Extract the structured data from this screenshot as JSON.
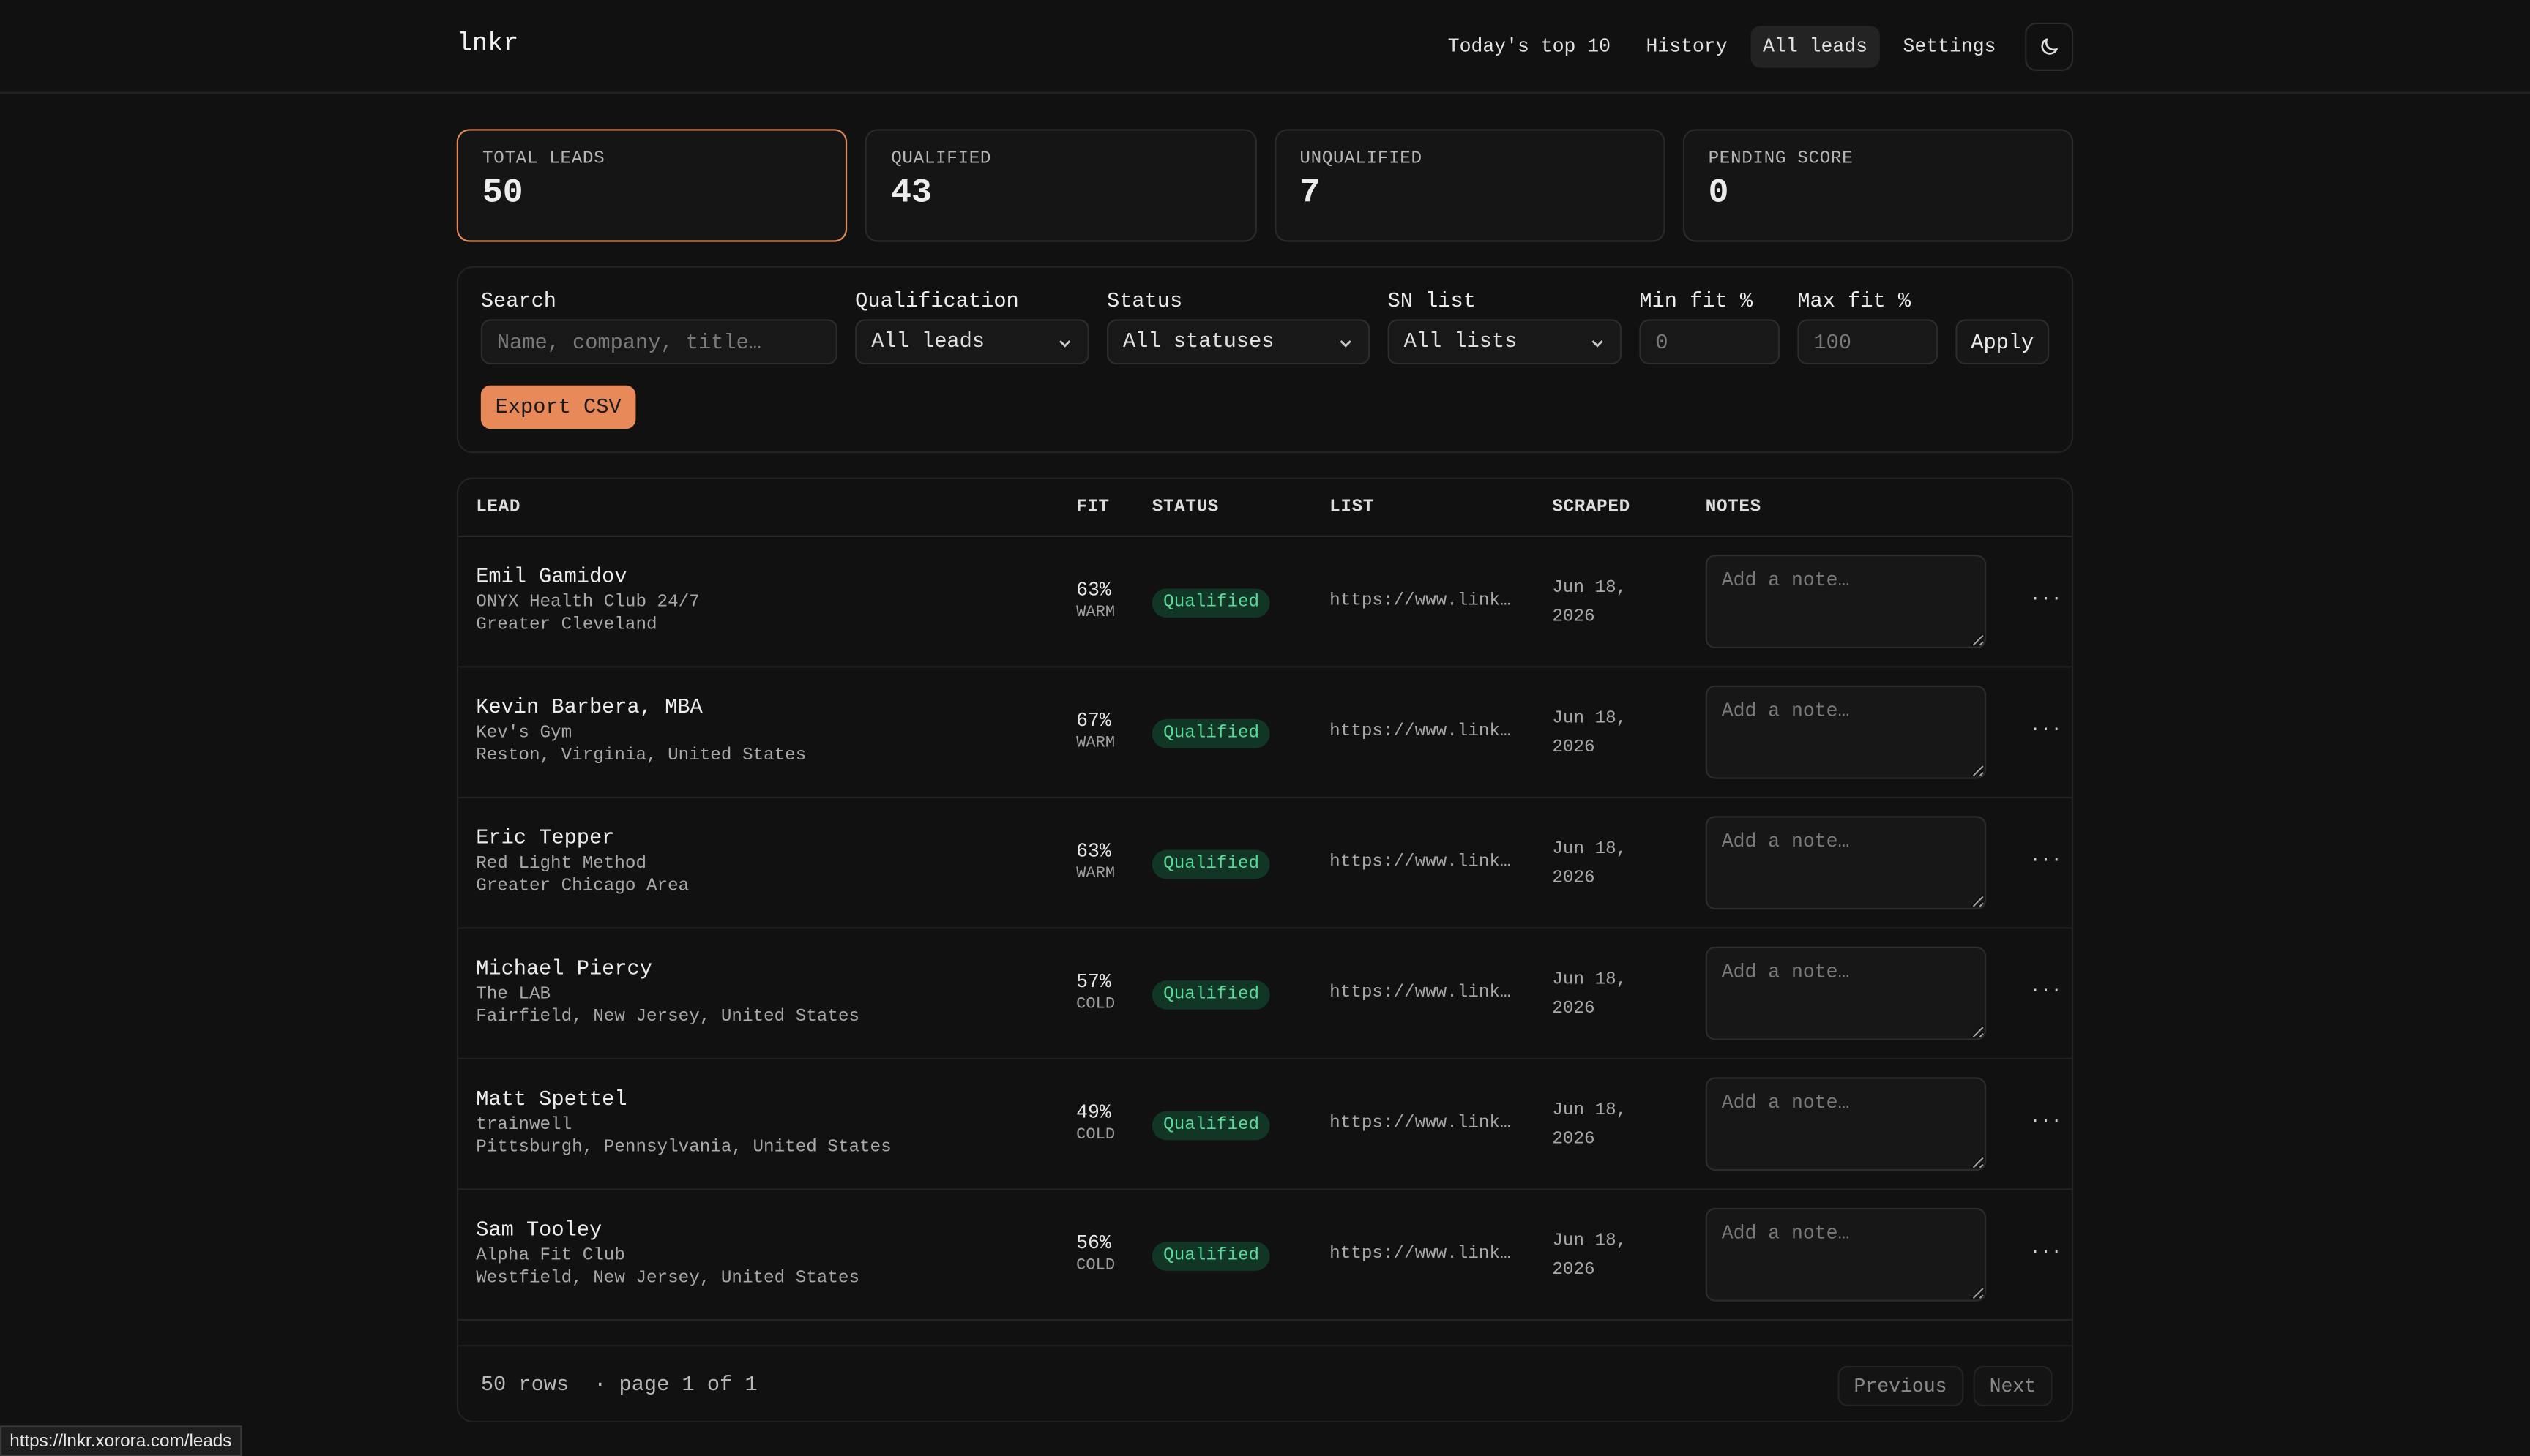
{
  "nav": {
    "logo": "lnkr",
    "links": [
      "Today's top 10",
      "History",
      "All leads",
      "Settings"
    ],
    "active": 2
  },
  "stats": [
    {
      "label": "TOTAL LEADS",
      "value": 50
    },
    {
      "label": "QUALIFIED",
      "value": 43
    },
    {
      "label": "UNQUALIFIED",
      "value": 7
    },
    {
      "label": "PENDING SCORE",
      "value": 0
    }
  ],
  "filters": {
    "search": {
      "label": "Search",
      "placeholder": "Name, company, title…"
    },
    "qualification": {
      "label": "Qualification",
      "value": "All leads"
    },
    "status": {
      "label": "Status",
      "value": "All statuses"
    },
    "sn_list": {
      "label": "SN list",
      "value": "All lists"
    },
    "min_fit": {
      "label": "Min fit %",
      "placeholder": "0"
    },
    "max_fit": {
      "label": "Max fit %",
      "placeholder": "100"
    },
    "apply": "Apply",
    "export": "Export CSV"
  },
  "table": {
    "headers": [
      "LEAD",
      "FIT",
      "STATUS",
      "LIST",
      "SCRAPED",
      "NOTES"
    ],
    "rows": [
      {
        "name": "Emil Gamidov",
        "company": "ONYX Health Club 24/7",
        "location": "Greater Cleveland",
        "fit": "63%",
        "tier": "WARM",
        "status": "Qualified",
        "list": "https://www.link…",
        "scraped": "Jun 18, 2026",
        "note": "Add a note…",
        "menu": "···"
      },
      {
        "name": "Kevin Barbera, MBA",
        "company": "Kev's Gym",
        "location": "Reston, Virginia, United States",
        "fit": "67%",
        "tier": "WARM",
        "status": "Qualified",
        "list": "https://www.link…",
        "scraped": "Jun 18, 2026",
        "note": "Add a note…",
        "menu": "···"
      },
      {
        "name": "Eric Tepper",
        "company": "Red Light Method",
        "location": "Greater Chicago Area",
        "fit": "63%",
        "tier": "WARM",
        "status": "Qualified",
        "list": "https://www.link…",
        "scraped": "Jun 18, 2026",
        "note": "Add a note…",
        "menu": "···"
      },
      {
        "name": "Michael Piercy",
        "company": "The LAB",
        "location": "Fairfield, New Jersey, United States",
        "fit": "57%",
        "tier": "COLD",
        "status": "Qualified",
        "list": "https://www.link…",
        "scraped": "Jun 18, 2026",
        "note": "Add a note…",
        "menu": "···"
      },
      {
        "name": "Matt Spettel",
        "company": "trainwell",
        "location": "Pittsburgh, Pennsylvania, United States",
        "fit": "49%",
        "tier": "COLD",
        "status": "Qualified",
        "list": "https://www.link…",
        "scraped": "Jun 18, 2026",
        "note": "Add a note…",
        "menu": "···"
      },
      {
        "name": "Sam Tooley",
        "company": "Alpha Fit Club",
        "location": "Westfield, New Jersey, United States",
        "fit": "56%",
        "tier": "COLD",
        "status": "Qualified",
        "list": "https://www.link…",
        "scraped": "Jun 18, 2026",
        "note": "Add a note…",
        "menu": "···"
      }
    ]
  },
  "footer": {
    "rows": "50 rows",
    "page": "· page 1 of 1",
    "previous": "Previous",
    "next": "Next"
  },
  "status_url": "https://lnkr.xorora.com/leads"
}
